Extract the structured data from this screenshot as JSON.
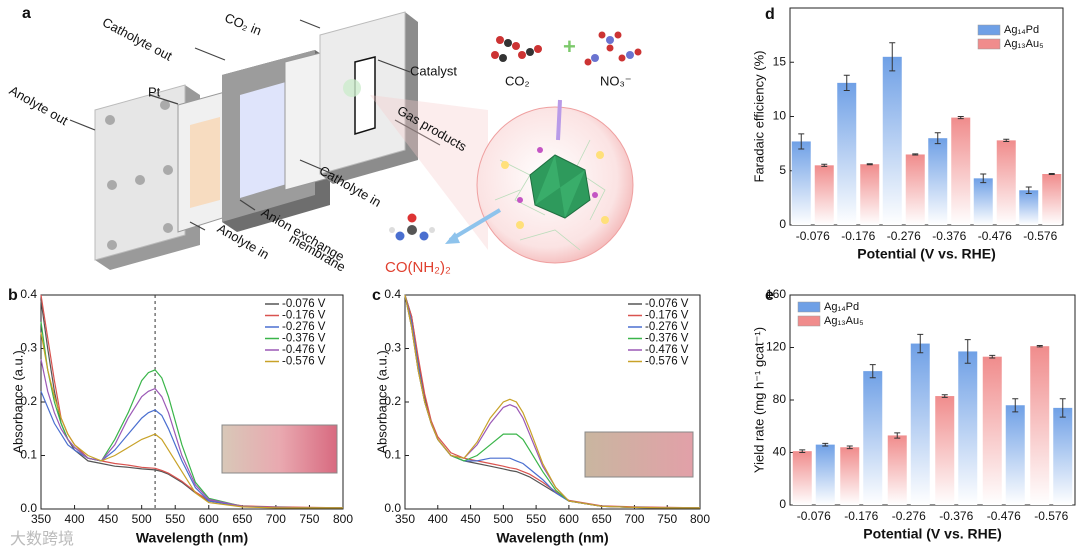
{
  "diagram": {
    "panel": "a",
    "labels": [
      "CO₂ in",
      "Catholyte out",
      "Catalyst",
      "CO₂",
      "NO₃⁻",
      "Anolyte out",
      "Pt",
      "Gas products",
      "Catholyte in",
      "Anion exchange",
      "membrane",
      "Anolyte in",
      "CO(NH₂)₂"
    ]
  },
  "watermark": "大数跨境",
  "chart_data": [
    {
      "type": "line",
      "panel": "b",
      "xlabel": "Wavelength (nm)",
      "ylabel": "Absorbance (a.u.)",
      "x": [
        350,
        360,
        370,
        380,
        390,
        400,
        420,
        440,
        460,
        480,
        500,
        510,
        520,
        530,
        540,
        560,
        580,
        600,
        650,
        700,
        750,
        800
      ],
      "xlim": [
        350,
        800
      ],
      "xticks": [
        350,
        400,
        450,
        500,
        550,
        600,
        650,
        700,
        750,
        800
      ],
      "ylim": [
        0,
        0.4
      ],
      "yticks": [
        {
          "value": 0,
          "label": "0.0"
        },
        0.1,
        0.2,
        0.3,
        0.4
      ],
      "reference_line_x": 520,
      "series": [
        {
          "name": "-0.076 V",
          "color": "#555555",
          "values": [
            0.39,
            0.3,
            0.22,
            0.16,
            0.13,
            0.11,
            0.09,
            0.085,
            0.08,
            0.078,
            0.075,
            0.074,
            0.073,
            0.07,
            0.065,
            0.05,
            0.03,
            0.015,
            0.005,
            0.003,
            0.002,
            0.002
          ]
        },
        {
          "name": "-0.176 V",
          "color": "#d9534f",
          "values": [
            0.4,
            0.32,
            0.24,
            0.17,
            0.14,
            0.12,
            0.095,
            0.09,
            0.085,
            0.082,
            0.078,
            0.077,
            0.076,
            0.072,
            0.067,
            0.052,
            0.032,
            0.016,
            0.006,
            0.004,
            0.003,
            0.002
          ]
        },
        {
          "name": "-0.276 V",
          "color": "#4a6fd0",
          "values": [
            0.22,
            0.19,
            0.16,
            0.14,
            0.12,
            0.11,
            0.095,
            0.09,
            0.11,
            0.14,
            0.17,
            0.18,
            0.185,
            0.175,
            0.15,
            0.09,
            0.04,
            0.015,
            0.005,
            0.003,
            0.002,
            0.002
          ]
        },
        {
          "name": "-0.376 V",
          "color": "#3ab54a",
          "values": [
            0.35,
            0.26,
            0.2,
            0.16,
            0.13,
            0.115,
            0.095,
            0.09,
            0.13,
            0.18,
            0.24,
            0.255,
            0.26,
            0.245,
            0.21,
            0.12,
            0.05,
            0.02,
            0.005,
            0.003,
            0.002,
            0.002
          ]
        },
        {
          "name": "-0.476 V",
          "color": "#9b59b6",
          "values": [
            0.28,
            0.22,
            0.18,
            0.15,
            0.13,
            0.115,
            0.095,
            0.09,
            0.12,
            0.17,
            0.21,
            0.22,
            0.225,
            0.21,
            0.18,
            0.1,
            0.045,
            0.018,
            0.005,
            0.003,
            0.002,
            0.002
          ]
        },
        {
          "name": "-0.576 V",
          "color": "#c8a228",
          "values": [
            0.33,
            0.26,
            0.21,
            0.17,
            0.14,
            0.12,
            0.1,
            0.09,
            0.1,
            0.115,
            0.13,
            0.135,
            0.14,
            0.13,
            0.11,
            0.07,
            0.03,
            0.012,
            0.004,
            0.002,
            0.002,
            0.002
          ]
        }
      ]
    },
    {
      "type": "line",
      "panel": "c",
      "xlabel": "Wavelength (nm)",
      "ylabel": "Absorbance (a.u.)",
      "x": [
        350,
        360,
        370,
        380,
        390,
        400,
        420,
        440,
        460,
        480,
        500,
        510,
        520,
        530,
        540,
        560,
        580,
        600,
        650,
        700,
        750,
        800
      ],
      "xlim": [
        350,
        800
      ],
      "xticks": [
        350,
        400,
        450,
        500,
        550,
        600,
        650,
        700,
        750,
        800
      ],
      "ylim": [
        0,
        0.4
      ],
      "yticks": [
        {
          "value": 0,
          "label": "0.0"
        },
        0.1,
        0.2,
        0.3,
        0.4
      ],
      "series": [
        {
          "name": "-0.076 V",
          "color": "#555555",
          "values": [
            0.4,
            0.36,
            0.28,
            0.21,
            0.16,
            0.13,
            0.1,
            0.09,
            0.085,
            0.08,
            0.075,
            0.072,
            0.07,
            0.065,
            0.06,
            0.045,
            0.03,
            0.015,
            0.005,
            0.003,
            0.002,
            0.002
          ]
        },
        {
          "name": "-0.176 V",
          "color": "#d9534f",
          "values": [
            0.4,
            0.36,
            0.285,
            0.215,
            0.165,
            0.135,
            0.105,
            0.095,
            0.09,
            0.085,
            0.08,
            0.077,
            0.075,
            0.07,
            0.065,
            0.05,
            0.032,
            0.016,
            0.006,
            0.004,
            0.003,
            0.002
          ]
        },
        {
          "name": "-0.276 V",
          "color": "#4a6fd0",
          "values": [
            0.4,
            0.35,
            0.27,
            0.2,
            0.16,
            0.13,
            0.1,
            0.09,
            0.09,
            0.095,
            0.095,
            0.095,
            0.09,
            0.085,
            0.075,
            0.055,
            0.03,
            0.015,
            0.005,
            0.003,
            0.002,
            0.002
          ]
        },
        {
          "name": "-0.376 V",
          "color": "#3ab54a",
          "values": [
            0.4,
            0.34,
            0.26,
            0.2,
            0.16,
            0.13,
            0.1,
            0.09,
            0.1,
            0.12,
            0.14,
            0.14,
            0.14,
            0.13,
            0.11,
            0.07,
            0.035,
            0.015,
            0.005,
            0.003,
            0.002,
            0.002
          ]
        },
        {
          "name": "-0.476 V",
          "color": "#9b59b6",
          "values": [
            0.4,
            0.34,
            0.26,
            0.2,
            0.16,
            0.13,
            0.1,
            0.095,
            0.12,
            0.16,
            0.19,
            0.195,
            0.19,
            0.17,
            0.14,
            0.08,
            0.04,
            0.015,
            0.005,
            0.003,
            0.002,
            0.002
          ]
        },
        {
          "name": "-0.576 V",
          "color": "#c8a228",
          "values": [
            0.4,
            0.34,
            0.26,
            0.2,
            0.16,
            0.13,
            0.1,
            0.095,
            0.125,
            0.17,
            0.2,
            0.205,
            0.2,
            0.18,
            0.15,
            0.085,
            0.04,
            0.015,
            0.005,
            0.003,
            0.002,
            0.002
          ]
        }
      ]
    },
    {
      "type": "bar",
      "panel": "d",
      "xlabel": "Potential (V vs. RHE)",
      "ylabel": "Faradaic efficiency (%)",
      "categories": [
        "-0.076",
        "-0.176",
        "-0.276",
        "-0.376",
        "-0.476",
        "-0.576"
      ],
      "ylim": [
        0,
        20
      ],
      "yticks": [
        0,
        5,
        10,
        15
      ],
      "series": [
        {
          "name": "Ag₁₄Pd",
          "color": "#6fa0e6",
          "values": [
            7.7,
            13.1,
            15.5,
            8.0,
            4.3,
            3.2
          ],
          "errors": [
            0.7,
            0.7,
            1.3,
            0.5,
            0.4,
            0.3
          ]
        },
        {
          "name": "Ag₁₃Au₅",
          "color": "#f08c8c",
          "values": [
            5.5,
            5.6,
            6.5,
            9.9,
            7.8,
            4.7
          ],
          "errors": [
            0.1,
            0.05,
            0.05,
            0.1,
            0.1,
            0.05
          ]
        }
      ]
    },
    {
      "type": "bar",
      "panel": "e",
      "xlabel": "Potential (V vs. RHE)",
      "ylabel": "Yield rate (mg h⁻¹ gcat⁻¹)",
      "categories": [
        "-0.076",
        "-0.176",
        "-0.276",
        "-0.376",
        "-0.476",
        "-0.576"
      ],
      "ylim": [
        0,
        160
      ],
      "yticks": [
        0,
        40,
        80,
        120,
        160
      ],
      "legend_reverse": true,
      "series": [
        {
          "name": "Ag₁₃Au₅",
          "color": "#f08c8c",
          "values": [
            41,
            44,
            53,
            83,
            113,
            121
          ],
          "errors": [
            1,
            1,
            2,
            1,
            1,
            0.5
          ]
        },
        {
          "name": "Ag₁₄Pd",
          "color": "#6fa0e6",
          "values": [
            46,
            102,
            123,
            117,
            76,
            74
          ],
          "errors": [
            1,
            5,
            7,
            9,
            5,
            7
          ]
        }
      ]
    }
  ]
}
